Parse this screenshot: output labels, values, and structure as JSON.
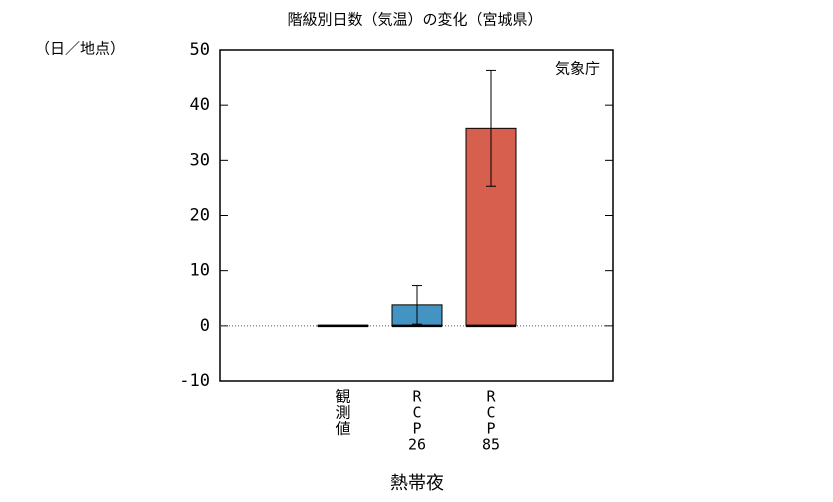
{
  "chart_data": {
    "type": "bar",
    "title": "階級別日数（気温）の変化（宮城県）",
    "y_unit_label": "（日／地点）",
    "annotation": "気象庁",
    "x_label": "熱帯夜",
    "categories": [
      [
        "観",
        "測",
        "値"
      ],
      [
        "R",
        "C",
        "P",
        "26"
      ],
      [
        "R",
        "C",
        "P",
        "85"
      ]
    ],
    "values": [
      0.1,
      3.8,
      35.8
    ],
    "errors": [
      null,
      3.5,
      10.5
    ],
    "colors": [
      "#000000",
      "#4393c3",
      "#d6604d"
    ],
    "ylim": [
      -10,
      50
    ],
    "yticks": [
      -10,
      0,
      10,
      20,
      30,
      40,
      50
    ],
    "zero_line": true
  }
}
